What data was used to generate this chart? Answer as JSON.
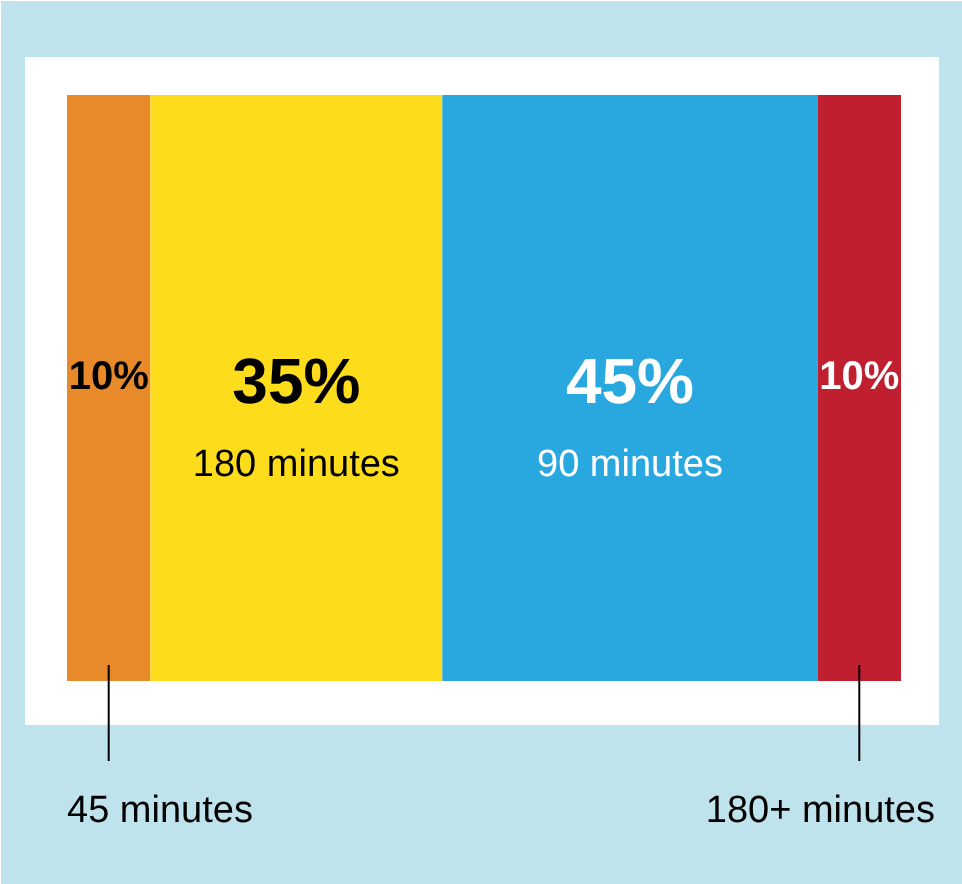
{
  "chart_data": {
    "type": "bar",
    "orientation": "horizontal",
    "stacked": true,
    "categories": [
      null
    ],
    "xlim": [
      0,
      100
    ],
    "tick_labels": false,
    "grid": false,
    "series": [
      {
        "name": "45 minutes",
        "color": "#e8892a",
        "values": [
          10
        ],
        "value_labels": [
          "10%"
        ]
      },
      {
        "name": "180 minutes",
        "color": "#fddc1c",
        "values": [
          35
        ],
        "value_labels": [
          "35%"
        ]
      },
      {
        "name": "90 minutes",
        "color": "#29a8e0",
        "values": [
          45
        ],
        "value_labels": [
          "45%"
        ]
      },
      {
        "name": "180+ minutes",
        "color": "#c01f2f",
        "values": [
          10
        ],
        "value_labels": [
          "10%"
        ]
      }
    ]
  }
}
